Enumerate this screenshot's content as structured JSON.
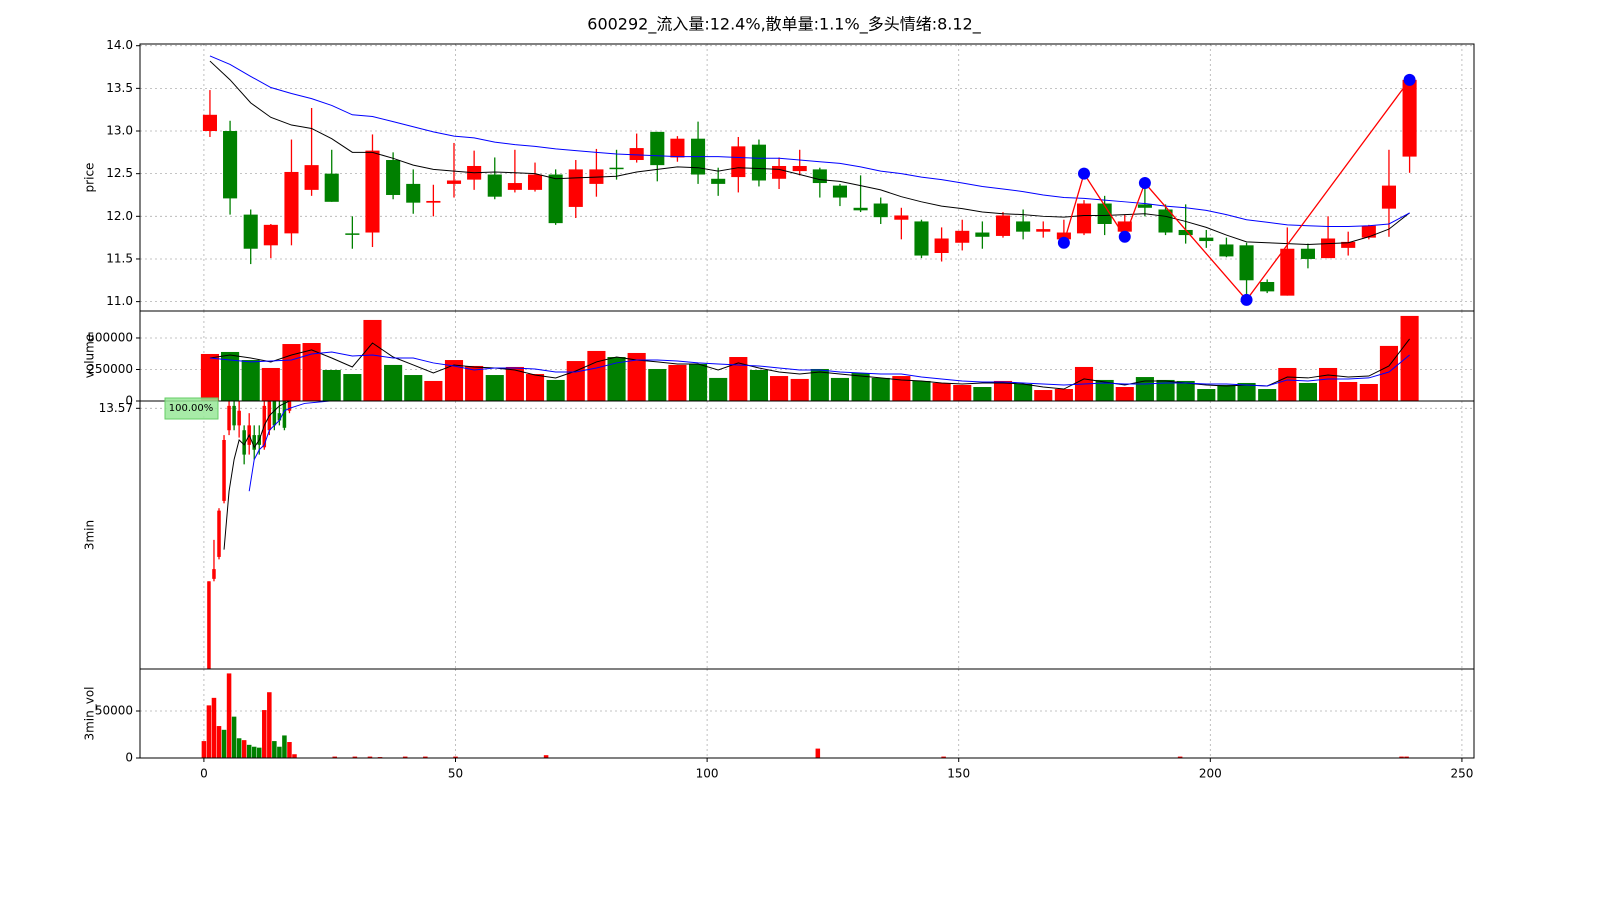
{
  "chart_data": [
    {
      "type": "candlestick",
      "title": "600292_流入量:12.4%,散单量:1.1%_多头情绪:8.12_",
      "ylabel": "price",
      "up_color": "red",
      "down_color": "green",
      "x": [
        1.2,
        5.2,
        9.3,
        13.3,
        17.4,
        21.4,
        25.4,
        29.5,
        33.5,
        37.6,
        41.6,
        45.6,
        49.7,
        53.7,
        57.8,
        61.8,
        65.8,
        69.9,
        73.9,
        78.0,
        82.0,
        86.0,
        90.1,
        94.1,
        98.2,
        102.2,
        106.2,
        110.3,
        114.3,
        118.4,
        122.4,
        126.4,
        130.5,
        134.5,
        138.6,
        142.6,
        146.6,
        150.7,
        154.7,
        158.8,
        162.8,
        166.8,
        170.9,
        174.9,
        179.0,
        183.0,
        187.0,
        191.1,
        195.1,
        199.2,
        203.2,
        207.2,
        211.3,
        215.3,
        219.4,
        223.4,
        227.4,
        231.5,
        235.5,
        239.6
      ],
      "open": [
        13.0,
        13.0,
        12.02,
        11.66,
        11.8,
        12.31,
        12.5,
        11.8,
        11.81,
        12.66,
        12.38,
        12.16,
        12.38,
        12.43,
        12.49,
        12.31,
        12.31,
        12.49,
        12.11,
        12.38,
        12.57,
        12.66,
        12.99,
        12.69,
        12.91,
        12.44,
        12.46,
        12.84,
        12.44,
        12.53,
        12.55,
        12.36,
        12.1,
        12.15,
        11.96,
        11.94,
        11.57,
        11.69,
        11.81,
        11.77,
        11.94,
        11.82,
        11.73,
        11.8,
        12.15,
        11.82,
        12.14,
        12.08,
        11.84,
        11.75,
        11.67,
        11.66,
        11.23,
        11.07,
        11.62,
        11.51,
        11.63,
        11.75,
        12.09,
        12.7
      ],
      "high": [
        13.48,
        13.12,
        12.08,
        11.91,
        12.9,
        13.27,
        12.78,
        12.0,
        12.96,
        12.75,
        12.55,
        12.37,
        12.86,
        12.77,
        12.69,
        12.78,
        12.63,
        12.55,
        12.66,
        12.79,
        12.78,
        12.97,
        12.99,
        12.94,
        13.11,
        12.57,
        12.93,
        12.9,
        12.69,
        12.78,
        12.57,
        12.38,
        12.48,
        12.22,
        12.1,
        11.96,
        11.87,
        11.96,
        11.94,
        12.05,
        12.08,
        11.94,
        11.96,
        12.19,
        12.24,
        12.02,
        12.39,
        12.14,
        12.14,
        11.84,
        11.75,
        11.69,
        11.26,
        11.87,
        11.68,
        12.0,
        11.82,
        11.9,
        12.78,
        13.6
      ],
      "low": [
        12.93,
        12.02,
        11.44,
        11.51,
        11.66,
        12.24,
        12.17,
        11.62,
        11.64,
        12.2,
        12.03,
        12.0,
        12.22,
        12.31,
        12.2,
        12.28,
        12.29,
        11.9,
        11.98,
        12.23,
        12.43,
        12.63,
        12.41,
        12.64,
        12.38,
        12.24,
        12.28,
        12.35,
        12.32,
        12.48,
        12.22,
        12.12,
        12.05,
        11.91,
        11.73,
        11.51,
        11.47,
        11.6,
        11.62,
        11.75,
        11.73,
        11.75,
        11.68,
        11.78,
        11.78,
        11.78,
        12.0,
        11.78,
        11.68,
        11.63,
        11.52,
        11.02,
        11.1,
        11.07,
        11.39,
        11.51,
        11.54,
        11.73,
        11.76,
        12.51
      ],
      "close": [
        13.19,
        12.21,
        11.62,
        11.9,
        12.52,
        12.6,
        12.17,
        11.79,
        12.77,
        12.25,
        12.16,
        12.18,
        12.42,
        12.59,
        12.23,
        12.39,
        12.49,
        11.92,
        12.55,
        12.55,
        12.56,
        12.8,
        12.6,
        12.91,
        12.49,
        12.38,
        12.82,
        12.42,
        12.59,
        12.59,
        12.39,
        12.22,
        12.07,
        11.99,
        12.01,
        11.54,
        11.74,
        11.83,
        11.76,
        12.01,
        11.82,
        11.85,
        11.81,
        12.15,
        11.91,
        11.94,
        12.1,
        11.81,
        11.78,
        11.71,
        11.53,
        11.25,
        11.12,
        11.62,
        11.5,
        11.74,
        11.7,
        11.89,
        12.36,
        13.6
      ],
      "lines": [
        {
          "color": "#000000",
          "values": [
            13.82,
            13.6,
            13.33,
            13.16,
            13.07,
            13.03,
            12.91,
            12.75,
            12.75,
            12.68,
            12.6,
            12.55,
            12.53,
            12.51,
            12.52,
            12.51,
            12.5,
            12.44,
            12.45,
            12.46,
            12.47,
            12.52,
            12.55,
            12.58,
            12.57,
            12.53,
            12.57,
            12.56,
            12.55,
            12.49,
            12.43,
            12.41,
            12.36,
            12.31,
            12.23,
            12.17,
            12.12,
            12.09,
            12.05,
            12.03,
            12.02,
            12.0,
            11.99,
            12.01,
            12.01,
            12.02,
            12.03,
            12.0,
            11.94,
            11.87,
            11.78,
            11.7,
            11.69,
            11.68,
            11.67,
            11.68,
            11.69,
            11.76,
            11.85,
            12.04
          ]
        },
        {
          "color": "#0000ff",
          "values": [
            13.88,
            13.78,
            13.64,
            13.51,
            13.44,
            13.38,
            13.3,
            13.19,
            13.17,
            13.11,
            13.05,
            12.99,
            12.94,
            12.92,
            12.87,
            12.84,
            12.82,
            12.79,
            12.77,
            12.75,
            12.73,
            12.72,
            12.71,
            12.7,
            12.7,
            12.7,
            12.69,
            12.68,
            12.68,
            12.66,
            12.64,
            12.62,
            12.58,
            12.53,
            12.5,
            12.46,
            12.43,
            12.39,
            12.35,
            12.32,
            12.29,
            12.25,
            12.22,
            12.21,
            12.19,
            12.17,
            12.15,
            12.12,
            12.1,
            12.07,
            12.02,
            11.96,
            11.93,
            11.9,
            11.89,
            11.88,
            11.88,
            11.89,
            11.91,
            12.04
          ]
        }
      ],
      "zigzag": {
        "x": [
          170.9,
          174.9,
          183.0,
          187.0,
          207.2,
          239.6
        ],
        "values": [
          11.69,
          12.5,
          11.76,
          12.39,
          11.02,
          13.6
        ],
        "color": "#ff0000",
        "marker_color": "#0000ff"
      },
      "xlim": [
        -12.7,
        252.4
      ],
      "ylim": [
        10.89,
        14.02
      ],
      "yticks": [
        {
          "value": 11,
          "label": "11.0"
        },
        11.5,
        {
          "value": 12,
          "label": "12.0"
        },
        12.5,
        {
          "value": 13,
          "label": "13.0"
        },
        13.5,
        {
          "value": 14,
          "label": "14.0"
        }
      ],
      "grid": true
    },
    {
      "type": "bar",
      "ylabel": "volume",
      "x": [
        1.2,
        5.2,
        9.3,
        13.3,
        17.4,
        21.4,
        25.4,
        29.5,
        33.5,
        37.6,
        41.6,
        45.6,
        49.7,
        53.7,
        57.8,
        61.8,
        65.8,
        69.9,
        73.9,
        78.0,
        82.0,
        86.0,
        90.1,
        94.1,
        98.2,
        102.2,
        106.2,
        110.3,
        114.3,
        118.4,
        122.4,
        126.4,
        130.5,
        134.5,
        138.6,
        142.6,
        146.6,
        150.7,
        154.7,
        158.8,
        162.8,
        166.8,
        170.9,
        174.9,
        179.0,
        183.0,
        187.0,
        191.1,
        195.1,
        199.2,
        203.2,
        207.2,
        211.3,
        215.3,
        219.4,
        223.4,
        227.4,
        231.5,
        235.5,
        239.6
      ],
      "values": [
        373000,
        389000,
        325000,
        262000,
        452000,
        460000,
        246000,
        214000,
        643000,
        286000,
        206000,
        159000,
        325000,
        278000,
        206000,
        270000,
        214000,
        167000,
        317000,
        397000,
        349000,
        381000,
        254000,
        286000,
        294000,
        183000,
        349000,
        246000,
        198000,
        175000,
        254000,
        183000,
        222000,
        183000,
        198000,
        159000,
        143000,
        127000,
        111000,
        159000,
        135000,
        87000,
        95000,
        270000,
        167000,
        111000,
        190000,
        167000,
        159000,
        95000,
        127000,
        143000,
        95000,
        262000,
        143000,
        262000,
        151000,
        135000,
        437000,
        675000
      ],
      "colors": [
        "red",
        "green",
        "green",
        "red",
        "red",
        "red",
        "green",
        "green",
        "red",
        "green",
        "green",
        "red",
        "red",
        "red",
        "green",
        "red",
        "red",
        "green",
        "red",
        "red",
        "green",
        "red",
        "green",
        "red",
        "green",
        "green",
        "red",
        "green",
        "red",
        "red",
        "green",
        "green",
        "green",
        "green",
        "red",
        "green",
        "red",
        "red",
        "green",
        "red",
        "green",
        "red",
        "red",
        "red",
        "green",
        "red",
        "green",
        "green",
        "green",
        "green",
        "green",
        "green",
        "green",
        "red",
        "green",
        "red",
        "red",
        "red",
        "red",
        "red"
      ],
      "lines": [
        {
          "color": "#000000",
          "values": [
            341000,
            365000,
            341000,
            310000,
            365000,
            405000,
            341000,
            270000,
            460000,
            349000,
            286000,
            222000,
            286000,
            270000,
            262000,
            246000,
            206000,
            183000,
            238000,
            310000,
            349000,
            325000,
            310000,
            294000,
            294000,
            246000,
            302000,
            262000,
            230000,
            214000,
            230000,
            214000,
            198000,
            183000,
            167000,
            159000,
            143000,
            135000,
            143000,
            143000,
            135000,
            111000,
            95000,
            175000,
            151000,
            127000,
            159000,
            159000,
            143000,
            127000,
            119000,
            127000,
            119000,
            190000,
            183000,
            206000,
            190000,
            198000,
            278000,
            492000
          ]
        },
        {
          "color": "#0000ff",
          "values": [
            341000,
            325000,
            310000,
            317000,
            325000,
            373000,
            389000,
            357000,
            365000,
            341000,
            341000,
            302000,
            278000,
            246000,
            262000,
            262000,
            254000,
            230000,
            230000,
            262000,
            302000,
            325000,
            325000,
            317000,
            302000,
            294000,
            286000,
            278000,
            262000,
            246000,
            246000,
            230000,
            222000,
            214000,
            214000,
            190000,
            175000,
            159000,
            151000,
            151000,
            143000,
            135000,
            127000,
            135000,
            143000,
            135000,
            135000,
            143000,
            143000,
            135000,
            135000,
            127000,
            119000,
            167000,
            159000,
            175000,
            175000,
            183000,
            230000,
            365000
          ]
        }
      ],
      "xlim": [
        -12.7,
        252.4
      ],
      "ylim": [
        0,
        714000
      ],
      "yticks": [
        0,
        250000,
        500000
      ],
      "grid": true
    },
    {
      "type": "candlestick",
      "ylabel": "3min",
      "up_color": "red",
      "down_color": "green",
      "x": [
        1,
        2,
        3,
        4,
        5,
        6,
        7,
        8,
        9,
        10,
        11,
        12,
        13,
        14,
        15,
        16,
        17
      ],
      "open": [
        12.5,
        12.87,
        12.96,
        13.19,
        13.48,
        13.58,
        13.5,
        13.48,
        13.42,
        13.46,
        13.46,
        13.41,
        13.48,
        13.6,
        13.55,
        13.62,
        13.56
      ],
      "high": [
        12.86,
        13.03,
        13.16,
        13.46,
        13.62,
        13.62,
        13.6,
        13.5,
        13.55,
        13.5,
        13.5,
        13.62,
        13.65,
        13.64,
        13.6,
        13.66,
        13.66
      ],
      "low": [
        12.5,
        12.86,
        12.95,
        13.18,
        13.46,
        13.48,
        13.45,
        13.34,
        13.38,
        13.36,
        13.38,
        13.4,
        13.46,
        13.48,
        13.5,
        13.48,
        13.55
      ],
      "close": [
        12.86,
        12.91,
        13.15,
        13.44,
        13.58,
        13.5,
        13.56,
        13.38,
        13.5,
        13.4,
        13.42,
        13.58,
        13.62,
        13.5,
        13.52,
        13.49,
        13.62
      ],
      "lines": [
        {
          "color": "#000000",
          "x": [
            4,
            5,
            6,
            7,
            8,
            9,
            10,
            11,
            12,
            13,
            14,
            15,
            16,
            17
          ],
          "values": [
            12.99,
            13.23,
            13.36,
            13.44,
            13.42,
            13.46,
            13.41,
            13.44,
            13.5,
            13.54,
            13.56,
            13.58,
            13.59,
            13.6
          ]
        },
        {
          "color": "#0000ff",
          "x": [
            9,
            10,
            11,
            12,
            13,
            14,
            15,
            16,
            17,
            20,
            25
          ],
          "values": [
            13.23,
            13.36,
            13.4,
            13.42,
            13.48,
            13.5,
            13.52,
            13.56,
            13.57,
            13.59,
            13.6
          ]
        }
      ],
      "annotation": "100.00%",
      "xlim": [
        -12.7,
        252.4
      ],
      "ylim": [
        12.5,
        13.6
      ],
      "yticks": [
        13.57
      ],
      "grid": true
    },
    {
      "type": "bar",
      "ylabel": "3min_vol",
      "x": [
        0,
        1,
        2,
        3,
        4,
        5,
        6,
        7,
        8,
        9,
        10,
        11,
        12,
        13,
        14,
        15,
        16,
        17,
        18,
        26,
        30,
        33,
        35,
        40,
        44,
        50,
        68,
        122,
        147,
        194,
        238,
        239
      ],
      "values": [
        18000,
        56000,
        64000,
        34000,
        30000,
        90000,
        44000,
        21000,
        19000,
        14000,
        12000,
        11000,
        51000,
        70000,
        18000,
        12000,
        24000,
        17000,
        4000,
        1500,
        1500,
        1500,
        1000,
        1500,
        1500,
        1500,
        3000,
        10000,
        1500,
        1500,
        1500,
        1500
      ],
      "colors": [
        "red",
        "red",
        "red",
        "red",
        "green",
        "red",
        "green",
        "green",
        "red",
        "green",
        "green",
        "green",
        "red",
        "red",
        "green",
        "green",
        "green",
        "red",
        "red",
        "red",
        "red",
        "red",
        "red",
        "red",
        "red",
        "red",
        "red",
        "red",
        "red",
        "red",
        "red",
        "red"
      ],
      "xlim": [
        -12.7,
        252.4
      ],
      "ylim": [
        0,
        94700
      ],
      "yticks": [
        0,
        50000
      ],
      "xticks": [
        0,
        50,
        100,
        150,
        200,
        250
      ],
      "grid": true
    }
  ]
}
